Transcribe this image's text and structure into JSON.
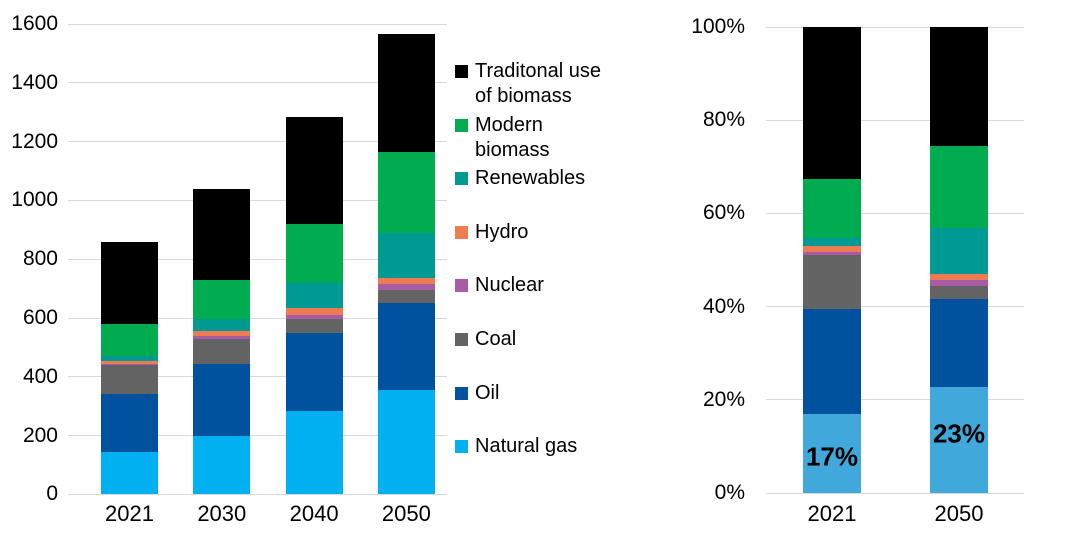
{
  "chart_data": [
    {
      "id": "primary-energy-demand-absolute",
      "type": "bar",
      "stacked": true,
      "grid": true,
      "categories": [
        "2021",
        "2030",
        "2040",
        "2050"
      ],
      "ylim": [
        0,
        1600
      ],
      "ytick_step": 200,
      "ytick_labels": [
        "1600",
        "1400",
        "1200",
        "1000",
        "800",
        "600",
        "400",
        "200",
        "0"
      ],
      "legend_position": "right",
      "series": [
        {
          "name": "Natural gas",
          "color": "#00B0F0",
          "values": [
            145,
            200,
            285,
            355
          ]
        },
        {
          "name": "Oil",
          "color": "#00519E",
          "values": [
            195,
            245,
            265,
            295
          ]
        },
        {
          "name": "Coal",
          "color": "#636363",
          "values": [
            100,
            85,
            45,
            45
          ]
        },
        {
          "name": "Nuclear",
          "color": "#A85CA6",
          "values": [
            5,
            10,
            15,
            20
          ]
        },
        {
          "name": "Hydro",
          "color": "#EF7B51",
          "values": [
            10,
            15,
            25,
            20
          ]
        },
        {
          "name": "Renewables",
          "color": "#009A93",
          "values": [
            15,
            40,
            85,
            155
          ]
        },
        {
          "name": "Modern biomass",
          "color": "#00AC4F",
          "values": [
            110,
            135,
            200,
            275
          ]
        },
        {
          "name": "Traditonal use of biomass",
          "color": "#000000",
          "values": [
            280,
            310,
            365,
            400
          ]
        }
      ]
    },
    {
      "id": "natural-gas-share-percent",
      "type": "bar",
      "stacked": true,
      "normalized": true,
      "grid": true,
      "categories": [
        "2021",
        "2050"
      ],
      "ylim": [
        0,
        100
      ],
      "ytick_step": 20,
      "ytick_labels": [
        "100%",
        "80%",
        "60%",
        "40%",
        "20%",
        "0%"
      ],
      "bar_labels": [
        {
          "category": "2021",
          "text": "17%"
        },
        {
          "category": "2050",
          "text": "23%"
        }
      ],
      "series": [
        {
          "name": "Natural gas",
          "color": "#41A8DC",
          "values": [
            145,
            355
          ]
        },
        {
          "name": "Oil",
          "color": "#00519E",
          "values": [
            195,
            295
          ]
        },
        {
          "name": "Coal",
          "color": "#636363",
          "values": [
            100,
            45
          ]
        },
        {
          "name": "Nuclear",
          "color": "#A85CA6",
          "values": [
            5,
            20
          ]
        },
        {
          "name": "Hydro",
          "color": "#EF7B51",
          "values": [
            10,
            20
          ]
        },
        {
          "name": "Renewables",
          "color": "#009A93",
          "values": [
            15,
            155
          ]
        },
        {
          "name": "Modern biomass",
          "color": "#00AC4F",
          "values": [
            110,
            275
          ]
        },
        {
          "name": "Traditonal use of biomass",
          "color": "#000000",
          "values": [
            280,
            400
          ]
        }
      ]
    }
  ],
  "legend": {
    "items": [
      {
        "label": "Traditonal use\nof biomass",
        "color": "#000000"
      },
      {
        "label": "Modern\nbiomass",
        "color": "#00AC4F"
      },
      {
        "label": "Renewables",
        "color": "#009A93"
      },
      {
        "label": "Hydro",
        "color": "#EF7B51"
      },
      {
        "label": "Nuclear",
        "color": "#A85CA6"
      },
      {
        "label": "Coal",
        "color": "#636363"
      },
      {
        "label": "Oil",
        "color": "#00519E"
      },
      {
        "label": "Natural gas",
        "color": "#00B0F0"
      }
    ]
  },
  "style": {
    "gridline_color": "#D9D9D9",
    "text_color": "#000000",
    "background": "#FFFFFF"
  }
}
